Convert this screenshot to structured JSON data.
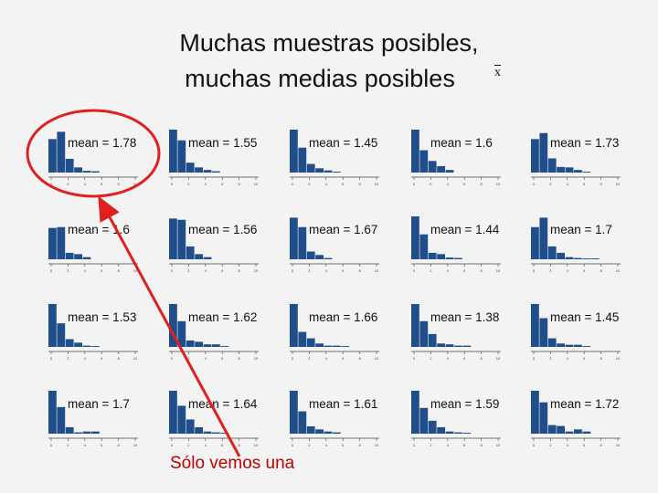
{
  "title": {
    "line1": "Muchas muestras posibles,",
    "line2": "muchas medias posibles",
    "symbol": "x"
  },
  "caption": "Sólo vemos una",
  "colors": {
    "bar": "#1f4e8a",
    "axis": "#444444",
    "highlight": "#e02020"
  },
  "chart_data": {
    "type": "bar",
    "layout": "grid 4x5",
    "bins": [
      0,
      1,
      2,
      3,
      4,
      5,
      6,
      7,
      8,
      9
    ],
    "axis_ticks": [
      "0",
      "2",
      "4",
      "6",
      "8",
      "10"
    ],
    "ylim": [
      0,
      1
    ],
    "highlighted_panel": 0,
    "panels": [
      {
        "label": "mean = 1.78",
        "values": [
          0.78,
          0.95,
          0.32,
          0.12,
          0.04,
          0.03,
          0.0,
          0.0,
          0.0,
          0.0
        ]
      },
      {
        "label": "mean = 1.55",
        "values": [
          1.0,
          0.75,
          0.23,
          0.12,
          0.06,
          0.03,
          0.0,
          0.0,
          0.0,
          0.0
        ]
      },
      {
        "label": "mean = 1.45",
        "values": [
          1.0,
          0.58,
          0.2,
          0.1,
          0.05,
          0.02,
          0.0,
          0.0,
          0.0,
          0.0
        ]
      },
      {
        "label": "mean = 1.6",
        "values": [
          1.0,
          0.52,
          0.27,
          0.15,
          0.06,
          0.0,
          0.0,
          0.0,
          0.0,
          0.0
        ]
      },
      {
        "label": "mean = 1.73",
        "values": [
          0.78,
          0.92,
          0.33,
          0.13,
          0.12,
          0.06,
          0.02,
          0.0,
          0.0,
          0.0
        ]
      },
      {
        "label": "mean = 1.6",
        "values": [
          0.73,
          0.75,
          0.15,
          0.12,
          0.05,
          0.0,
          0.0,
          0.0,
          0.0,
          0.0
        ]
      },
      {
        "label": "mean = 1.56",
        "values": [
          0.95,
          0.92,
          0.3,
          0.12,
          0.05,
          0.0,
          0.0,
          0.0,
          0.0,
          0.0
        ]
      },
      {
        "label": "mean = 1.67",
        "values": [
          0.97,
          0.75,
          0.18,
          0.1,
          0.03,
          0.0,
          0.0,
          0.0,
          0.0,
          0.0
        ]
      },
      {
        "label": "mean = 1.44",
        "values": [
          1.0,
          0.58,
          0.15,
          0.12,
          0.04,
          0.03,
          0.0,
          0.0,
          0.0,
          0.0
        ]
      },
      {
        "label": "mean = 1.7",
        "values": [
          0.75,
          0.97,
          0.3,
          0.15,
          0.05,
          0.03,
          0.02,
          0.02,
          0.0,
          0.0
        ]
      },
      {
        "label": "mean = 1.53",
        "values": [
          1.0,
          0.55,
          0.18,
          0.1,
          0.03,
          0.02,
          0.0,
          0.0,
          0.0,
          0.0
        ]
      },
      {
        "label": "mean = 1.62",
        "values": [
          1.0,
          0.6,
          0.15,
          0.12,
          0.06,
          0.06,
          0.02,
          0.0,
          0.0,
          0.0
        ]
      },
      {
        "label": "mean = 1.66",
        "values": [
          1.0,
          0.35,
          0.2,
          0.08,
          0.03,
          0.03,
          0.02,
          0.0,
          0.0,
          0.0
        ]
      },
      {
        "label": "mean = 1.38",
        "values": [
          1.0,
          0.6,
          0.3,
          0.08,
          0.06,
          0.03,
          0.03,
          0.0,
          0.0,
          0.0
        ]
      },
      {
        "label": "mean = 1.45",
        "values": [
          1.0,
          0.67,
          0.2,
          0.08,
          0.05,
          0.05,
          0.02,
          0.0,
          0.0,
          0.0
        ]
      },
      {
        "label": "mean = 1.7",
        "values": [
          1.0,
          0.62,
          0.15,
          0.03,
          0.05,
          0.05,
          0.0,
          0.0,
          0.0,
          0.0
        ]
      },
      {
        "label": "mean = 1.64",
        "values": [
          1.0,
          0.65,
          0.33,
          0.15,
          0.05,
          0.03,
          0.02,
          0.0,
          0.0,
          0.0
        ]
      },
      {
        "label": "mean = 1.61",
        "values": [
          1.0,
          0.52,
          0.17,
          0.1,
          0.05,
          0.03,
          0.0,
          0.0,
          0.0,
          0.0
        ]
      },
      {
        "label": "mean = 1.59",
        "values": [
          1.0,
          0.6,
          0.3,
          0.15,
          0.05,
          0.03,
          0.02,
          0.0,
          0.0,
          0.0
        ]
      },
      {
        "label": "mean = 1.72",
        "values": [
          1.0,
          0.73,
          0.2,
          0.18,
          0.05,
          0.1,
          0.05,
          0.0,
          0.0,
          0.0
        ]
      }
    ]
  }
}
